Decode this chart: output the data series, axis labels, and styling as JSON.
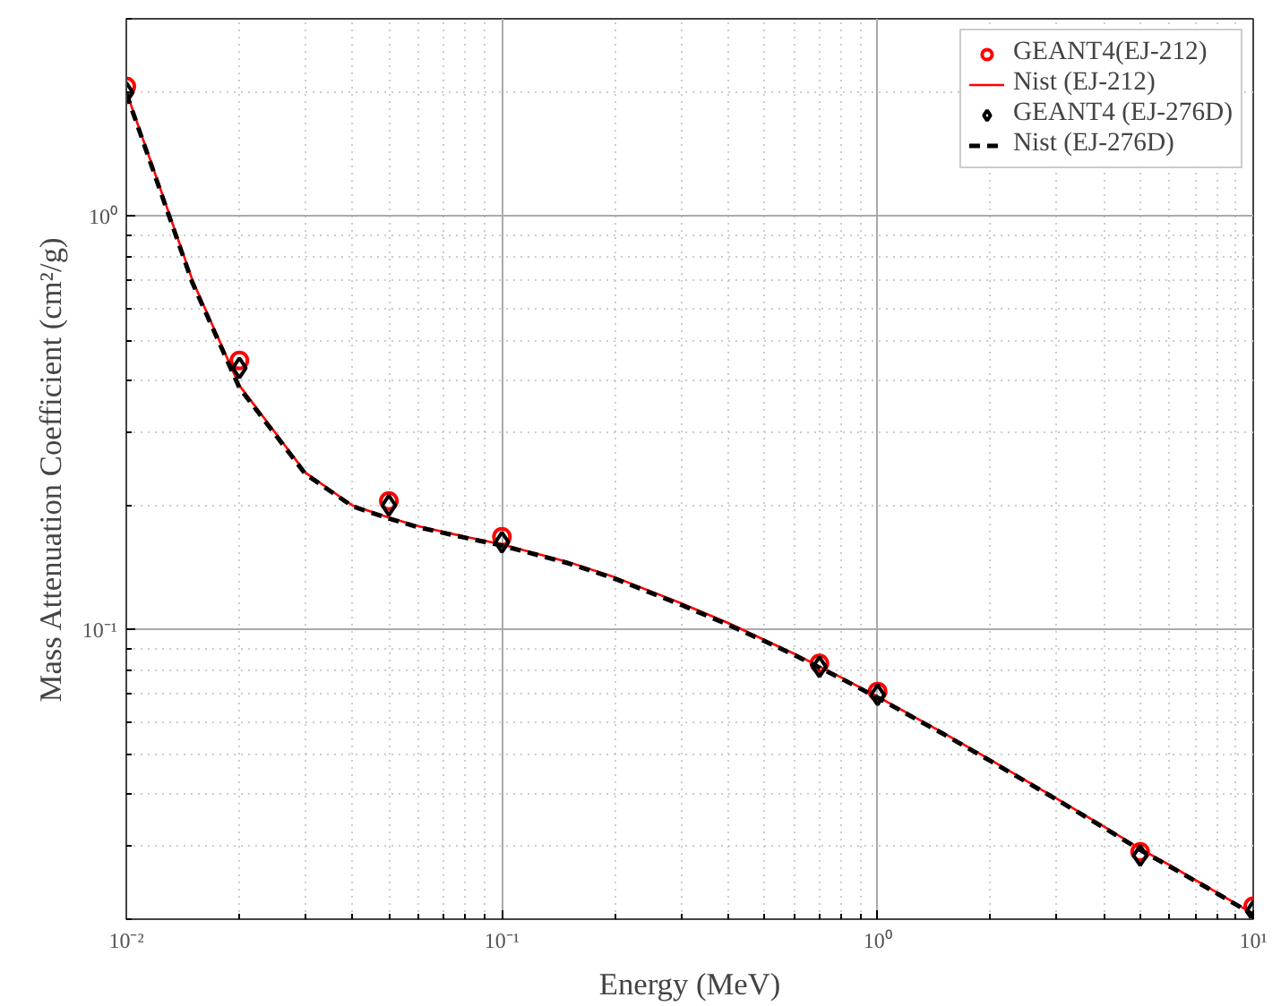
{
  "chart_data": {
    "type": "line",
    "xlabel": "Energy (MeV)",
    "ylabel": "Mass Attenuation Coefficient (cm²/g)",
    "log": "xy",
    "grid": true,
    "legend": "top right",
    "xlim": [
      0.01,
      10
    ],
    "ylim": [
      0.02,
      3
    ],
    "xticks": [
      {
        "value": 0.01,
        "label": "10⁻²"
      },
      {
        "value": 0.1,
        "label": "10⁻¹"
      },
      {
        "value": 1,
        "label": "10⁰"
      },
      {
        "value": 10,
        "label": "10¹"
      }
    ],
    "yticks": [
      {
        "value": 0.1,
        "label": "10⁻¹"
      },
      {
        "value": 1,
        "label": "10⁰"
      }
    ],
    "series": [
      {
        "name": "GEANT4(EJ-212)",
        "type": "scatter",
        "marker": "circle",
        "color": "#ff0000",
        "x": [
          0.01,
          0.02,
          0.05,
          0.1,
          0.7,
          1,
          5,
          10
        ],
        "values": [
          2.06,
          0.448,
          0.205,
          0.168,
          0.083,
          0.071,
          0.0291,
          0.0215
        ]
      },
      {
        "name": "Nist (EJ-212)",
        "line_style": "solid",
        "color": "#ff0000",
        "x": [
          0.01,
          0.015,
          0.02,
          0.03,
          0.04,
          0.05,
          0.06,
          0.08,
          0.1,
          0.15,
          0.2,
          0.3,
          0.4,
          0.5,
          0.6,
          0.8,
          1,
          1.25,
          1.5,
          2,
          3,
          4,
          5,
          6,
          8,
          10
        ],
        "values": [
          2.0,
          0.7,
          0.39,
          0.24,
          0.2,
          0.187,
          0.178,
          0.168,
          0.161,
          0.146,
          0.134,
          0.116,
          0.104,
          0.0946,
          0.0876,
          0.0768,
          0.069,
          0.0617,
          0.0563,
          0.0485,
          0.0391,
          0.0335,
          0.0296,
          0.027,
          0.0232,
          0.0206
        ]
      },
      {
        "name": "GEANT4 (EJ-276D)",
        "type": "scatter",
        "marker": "diamond",
        "color": "#000000",
        "x": [
          0.01,
          0.02,
          0.05,
          0.1,
          0.7,
          1,
          5,
          10
        ],
        "values": [
          1.99,
          0.43,
          0.2,
          0.163,
          0.0814,
          0.0697,
          0.0285,
          0.0209
        ]
      },
      {
        "name": "Nist (EJ-276D)",
        "line_style": "dashed",
        "color": "#000000",
        "x": [
          0.01,
          0.015,
          0.02,
          0.03,
          0.04,
          0.05,
          0.06,
          0.08,
          0.1,
          0.15,
          0.2,
          0.3,
          0.4,
          0.5,
          0.6,
          0.8,
          1,
          1.25,
          1.5,
          2,
          3,
          4,
          5,
          6,
          8,
          10
        ],
        "values": [
          1.98,
          0.69,
          0.385,
          0.238,
          0.199,
          0.186,
          0.177,
          0.167,
          0.16,
          0.145,
          0.133,
          0.115,
          0.103,
          0.094,
          0.087,
          0.0763,
          0.0686,
          0.0613,
          0.056,
          0.0482,
          0.0389,
          0.0333,
          0.0294,
          0.0268,
          0.0231,
          0.0205
        ]
      }
    ]
  }
}
